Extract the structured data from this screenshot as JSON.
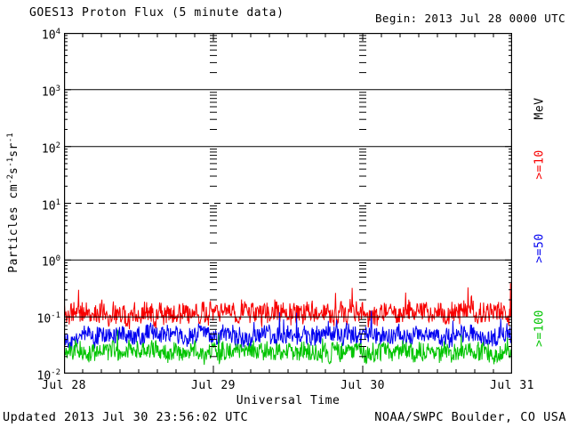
{
  "header": {
    "title": "GOES13 Proton Flux (5 minute data)",
    "begin_label": "Begin: 2013 Jul 28 0000 UTC"
  },
  "footer": {
    "updated": "Updated 2013 Jul 30 23:56:02 UTC",
    "source": "NOAA/SWPC Boulder, CO USA"
  },
  "chart_data": {
    "type": "line",
    "title": "GOES13 Proton Flux (5 minute data)",
    "xlabel": "Universal Time",
    "ylabel": "Particles cm-2s-1sr-1",
    "ylabel_parts": [
      {
        "text": "Particles cm"
      },
      {
        "sup": "-2"
      },
      {
        "text": "s"
      },
      {
        "sup": "-1"
      },
      {
        "text": "sr"
      },
      {
        "sup": "-1"
      }
    ],
    "x_tick_labels": [
      "Jul 28",
      "Jul 29",
      "Jul 30",
      "Jul 31"
    ],
    "x_range_days": 3,
    "points_per_day": 288,
    "y_scale": "log",
    "y_tick_exponents": [
      4,
      3,
      2,
      1,
      0,
      -1,
      -2
    ],
    "ylim": [
      0.01,
      10000
    ],
    "grid": {
      "solid_hlines": [
        1000,
        100,
        1,
        0.1
      ],
      "dashed_hlines": [
        10
      ],
      "day_boundary_tick_columns": true
    },
    "legend_title": "MeV",
    "legend": [
      {
        "label": "MeV",
        "color": "#000000",
        "cy": 122
      },
      {
        "label": ">=10",
        "color": "#f80000",
        "cy": 185
      },
      {
        "label": ">=50",
        "color": "#0000f0",
        "cy": 279
      },
      {
        "label": ">=100",
        "color": "#00c400",
        "cy": 369
      }
    ],
    "series": [
      {
        "name": ">=10",
        "unit": "MeV",
        "color": "#f80000",
        "mean_flux": 0.12,
        "min_flux": 0.06,
        "max_flux": 0.38,
        "gen": {
          "seed": 11,
          "mean_log": -0.93,
          "amp": 0.17,
          "walk_persist": 0.8,
          "walk_step": 0.1,
          "spike_prob": 0.03,
          "spike_amp": 0.4,
          "min_log": -1.22
        }
      },
      {
        "name": ">=50",
        "unit": "MeV",
        "color": "#0000f0",
        "mean_flux": 0.046,
        "min_flux": 0.025,
        "max_flux": 0.12,
        "gen": {
          "seed": 22,
          "mean_log": -1.33,
          "amp": 0.15,
          "walk_persist": 0.8,
          "walk_step": 0.08,
          "spike_prob": 0.025,
          "spike_amp": 0.32,
          "min_log": -1.58
        }
      },
      {
        "name": ">=100",
        "unit": "MeV",
        "color": "#00c400",
        "mean_flux": 0.021,
        "min_flux": 0.012,
        "max_flux": 0.06,
        "gen": {
          "seed": 33,
          "mean_log": -1.62,
          "amp": 0.15,
          "walk_persist": 0.8,
          "walk_step": 0.08,
          "spike_prob": 0.02,
          "spike_amp": 0.28,
          "min_log": -1.9
        }
      }
    ]
  }
}
